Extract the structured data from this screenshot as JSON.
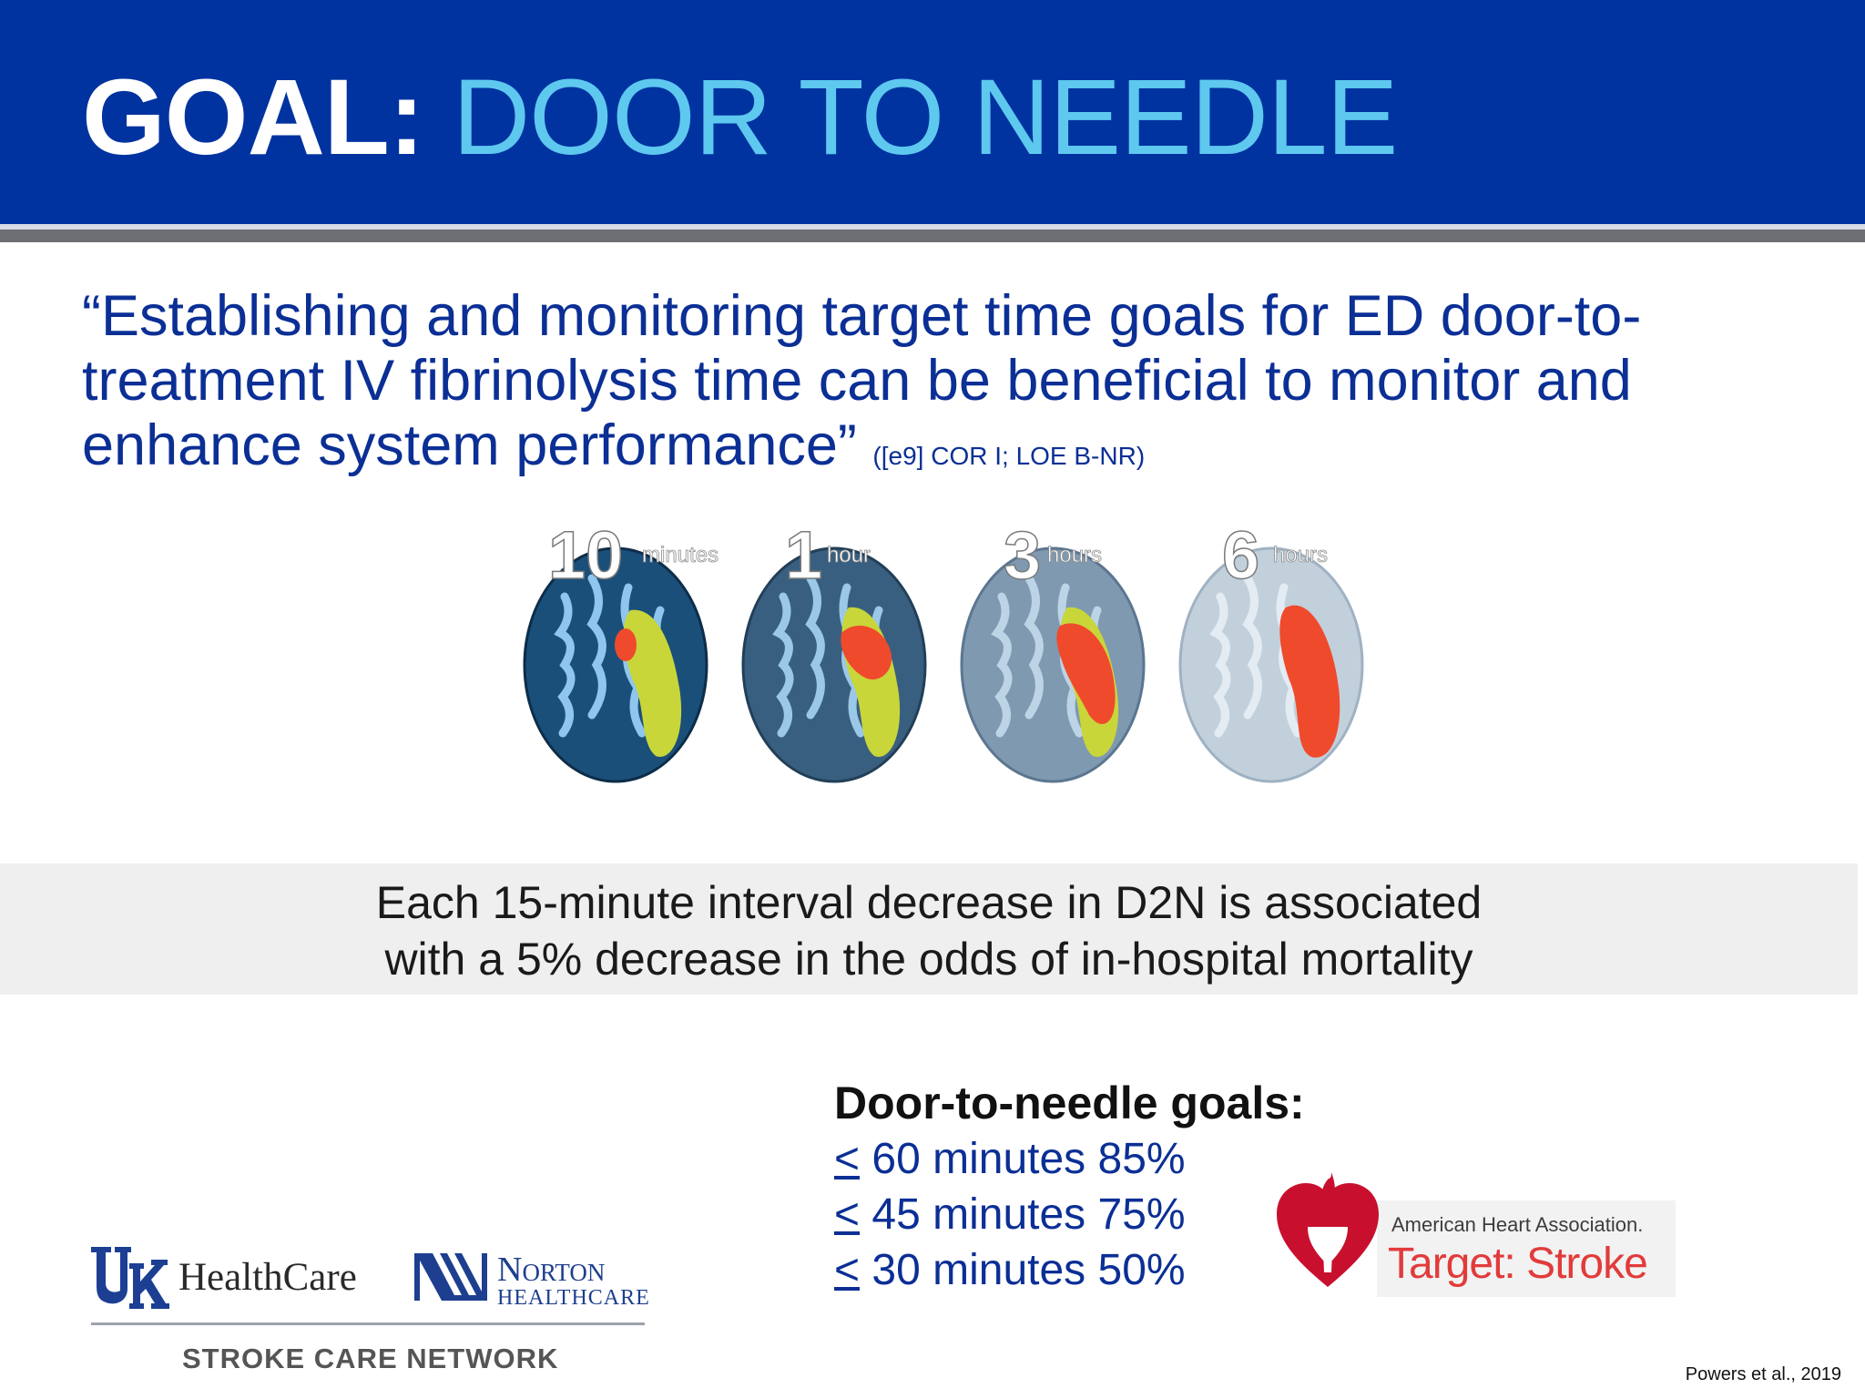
{
  "header": {
    "title_label": "GOAL:",
    "title_topic": "DOOR TO NEEDLE"
  },
  "quote": {
    "text": "“Establishing and monitoring target time goals for ED door-to-treatment IV fibrinolysis time can be beneficial  to monitor and enhance system performance”",
    "reference": "([e9] COR I; LOE B-NR)"
  },
  "brain_images": [
    {
      "number": "10",
      "unit": "minutes"
    },
    {
      "number": "1",
      "unit": "hour"
    },
    {
      "number": "3",
      "unit": "hours"
    },
    {
      "number": "6",
      "unit": "hours"
    }
  ],
  "callout": {
    "line1": "Each 15-minute interval decrease in D2N is associated",
    "line2": "with a 5% decrease in the odds of in-hospital mortality"
  },
  "goals": {
    "title": "Door-to-needle goals:",
    "items": [
      {
        "symbol": "<",
        "text": " 60 minutes 85%"
      },
      {
        "symbol": "<",
        "text": " 45 minutes 75%"
      },
      {
        "symbol": "<",
        "text": " 30 minutes 50%"
      }
    ]
  },
  "aha_logo": {
    "name": "American Heart Association.",
    "program": "Target: Stroke"
  },
  "partner_logos": {
    "uk": "HealthCare",
    "norton_name": "Norton",
    "norton_sub": "HEALTHCARE",
    "network": "STROKE CARE NETWORK"
  },
  "citation": "Powers et al., 2019",
  "colors": {
    "header_bg": "#0033a0",
    "title_accent": "#5ec8ef",
    "body_blue": "#0b2f95",
    "core_red": "#f04a2c",
    "penumbra_yellow": "#c8d63a"
  }
}
